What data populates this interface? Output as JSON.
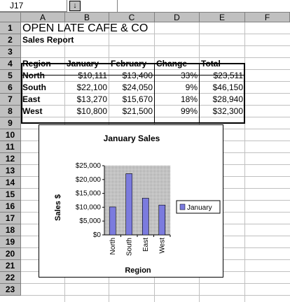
{
  "namebox": {
    "cell_ref": "J17",
    "dropdown_glyph": "↓"
  },
  "columns": [
    "A",
    "B",
    "C",
    "D",
    "E",
    "F"
  ],
  "rows": [
    "1",
    "2",
    "3",
    "4",
    "5",
    "6",
    "7",
    "8",
    "9",
    "10",
    "11",
    "12",
    "13",
    "14",
    "15",
    "16",
    "17",
    "18",
    "19",
    "20",
    "21",
    "22",
    "23"
  ],
  "sheet": {
    "title": "OPEN LATE CAFE & CO",
    "subtitle": "Sales Report",
    "headers": [
      "Region",
      "January",
      "February",
      "Change",
      "Total"
    ],
    "rows": [
      [
        "North",
        "$10,111",
        "$13,400",
        "33%",
        "$23,511"
      ],
      [
        "South",
        "$22,100",
        "$24,050",
        "9%",
        "$46,150"
      ],
      [
        "East",
        "$13,270",
        "$15,670",
        "18%",
        "$28,940"
      ],
      [
        "West",
        "$10,800",
        "$21,500",
        "99%",
        "$32,300"
      ]
    ]
  },
  "chart_data": {
    "type": "bar",
    "title": "January Sales",
    "xlabel": "Region",
    "ylabel": "Sales $",
    "categories": [
      "North",
      "South",
      "East",
      "West"
    ],
    "series": [
      {
        "name": "January",
        "values": [
          10111,
          22100,
          13270,
          10800
        ],
        "color": "#7b7bde"
      }
    ],
    "ylim": [
      0,
      25000
    ],
    "yticks": [
      "$0",
      "$5,000",
      "$10,000",
      "$15,000",
      "$20,000",
      "$25,000"
    ],
    "legend": "right",
    "plot_background": "dotted-gray"
  }
}
